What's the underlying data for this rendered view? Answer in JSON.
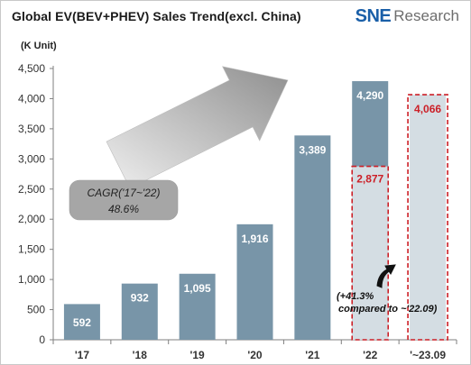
{
  "title": "Global EV(BEV+PHEV)  Sales Trend(excl. China)",
  "logo": {
    "sne": "SNE",
    "research": "Research"
  },
  "unit_label": "(K Unit)",
  "colors": {
    "bar": "#7895a8",
    "forecast_fill": "#d4dde3",
    "highlight_border": "#cc1f27",
    "arrow_gradient_start": "#efefef",
    "arrow_gradient_end": "#8f8f8f",
    "cagr_box": "#a6a6a6"
  },
  "cagr_box": {
    "line1": "CAGR('17~'22)",
    "line2": "48.6%"
  },
  "growth_note": {
    "line1": "(+41.3%",
    "line2": "compared to ~'22.09)"
  },
  "chart_data": {
    "type": "bar",
    "categories": [
      "'17",
      "'18",
      "'19",
      "'20",
      "'21",
      "'22",
      "'~23.09"
    ],
    "values": [
      592,
      932,
      1095,
      1916,
      3389,
      4290,
      4066
    ],
    "labels": [
      "592",
      "932",
      "1,095",
      "1,916",
      "3,389",
      "4,290",
      "4,066"
    ],
    "comparison": {
      "category": "'22",
      "value": 2877,
      "label": "2,877",
      "meaning": "up to '22.09"
    },
    "ylim": [
      0,
      4500
    ],
    "yticks": [
      0,
      500,
      1000,
      1500,
      2000,
      2500,
      3000,
      3500,
      4000,
      4500
    ],
    "ytick_labels": [
      "0",
      "500",
      "1,000",
      "1,500",
      "2,000",
      "2,500",
      "3,000",
      "3,500",
      "4,000",
      "4,500"
    ],
    "grid": false,
    "legend": "none"
  }
}
